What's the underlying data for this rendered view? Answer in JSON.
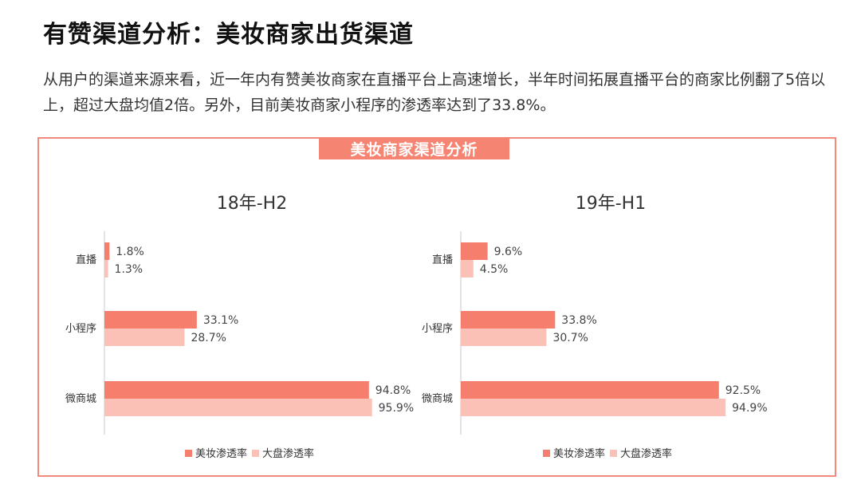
{
  "header": {
    "title": "有赞渠道分析：美妆商家出货渠道",
    "description": "从用户的渠道来源来看，近一年内有赞美妆商家在直播平台上高速增长，半年时间拓展直播平台的商家比例翻了5倍以上，超过大盘均值2倍。另外，目前美妆商家小程序的渗透率达到了33.8%。"
  },
  "panel": {
    "banner": "美妆商家渠道分析"
  },
  "colors": {
    "primary": "#f57e6d",
    "secondary": "#fbc1b6",
    "frame": "#f28a7c",
    "axis": "#c8c8c8"
  },
  "chart_data": [
    {
      "type": "bar",
      "orientation": "horizontal",
      "title": "18年-H2",
      "categories": [
        "直播",
        "小程序",
        "微商城"
      ],
      "series": [
        {
          "name": "美妆渗透率",
          "values": [
            1.8,
            33.1,
            94.8
          ],
          "labels": [
            "1.8%",
            "33.1%",
            "94.8%"
          ]
        },
        {
          "name": "大盘渗透率",
          "values": [
            1.3,
            28.7,
            95.9
          ],
          "labels": [
            "1.3%",
            "28.7%",
            "95.9%"
          ]
        }
      ],
      "xlim": [
        0,
        100
      ],
      "grid": false,
      "legend": "bottom"
    },
    {
      "type": "bar",
      "orientation": "horizontal",
      "title": "19年-H1",
      "categories": [
        "直播",
        "小程序",
        "微商城"
      ],
      "series": [
        {
          "name": "美妆渗透率",
          "values": [
            9.6,
            33.8,
            92.5
          ],
          "labels": [
            "9.6%",
            "33.8%",
            "92.5%"
          ]
        },
        {
          "name": "大盘渗透率",
          "values": [
            4.5,
            30.7,
            94.9
          ],
          "labels": [
            "4.5%",
            "30.7%",
            "94.9%"
          ]
        }
      ],
      "xlim": [
        0,
        100
      ],
      "grid": false,
      "legend": "bottom"
    }
  ]
}
